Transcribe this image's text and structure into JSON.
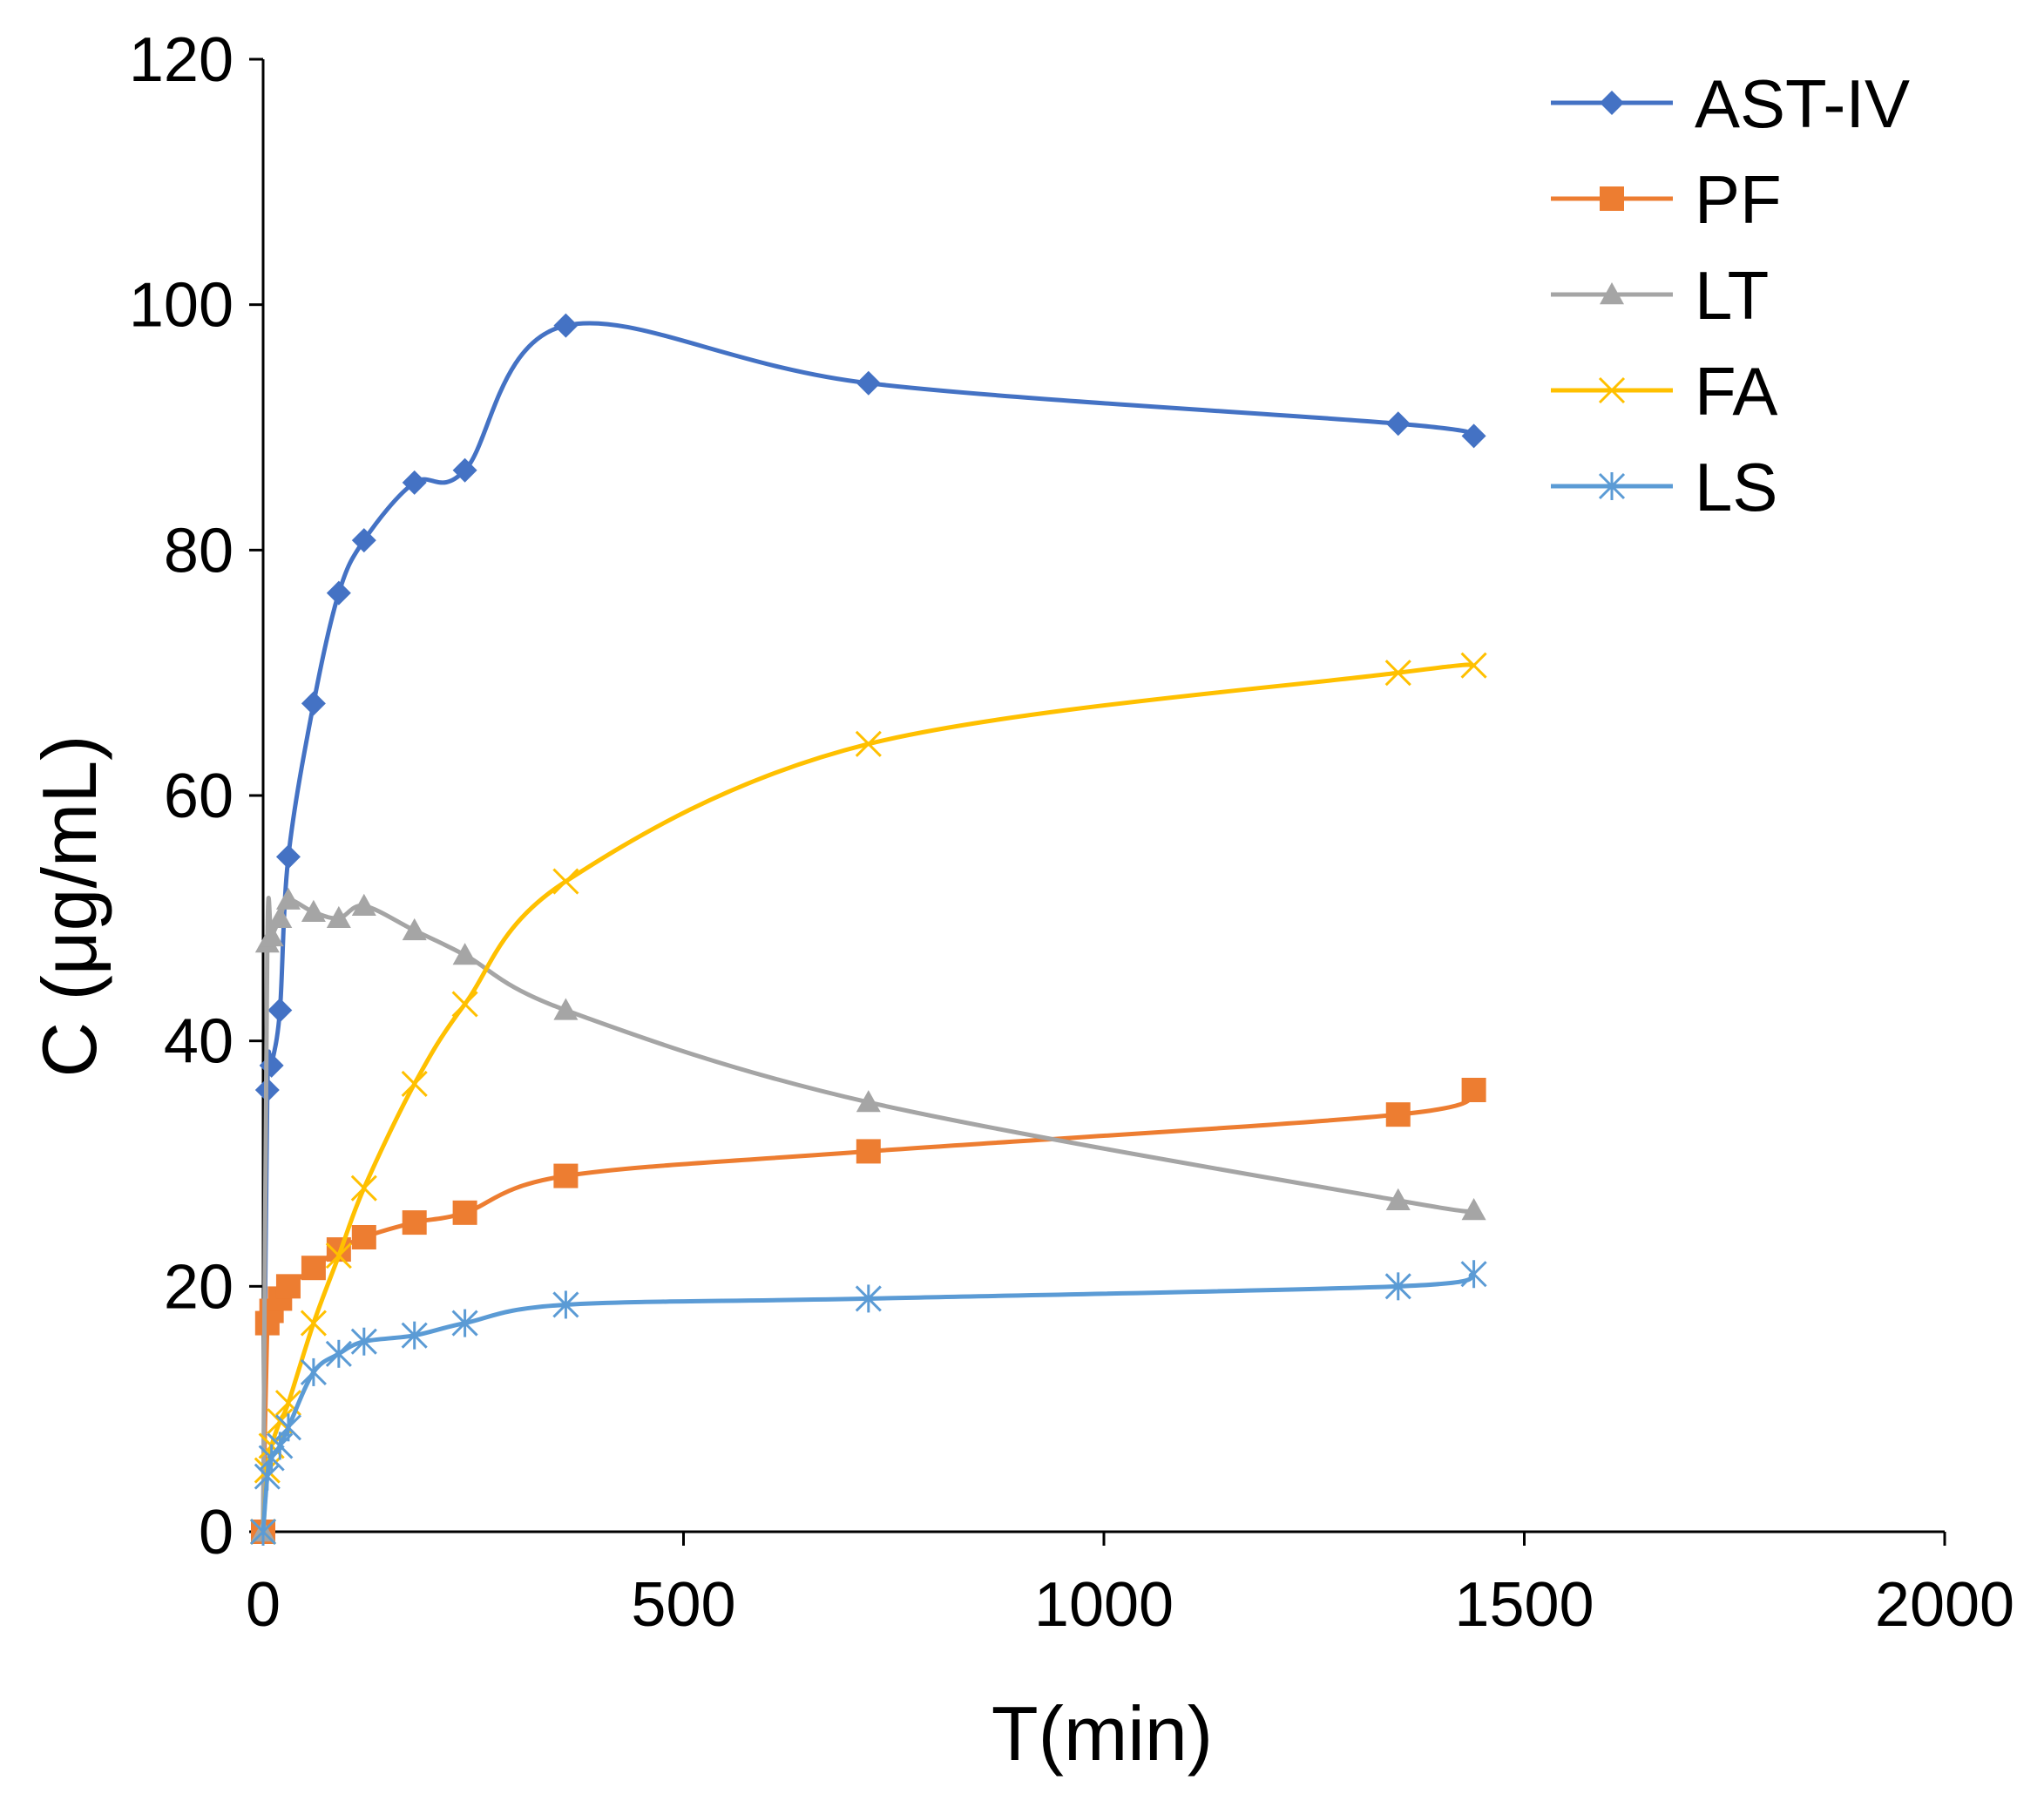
{
  "chart_data": {
    "type": "line",
    "title": "",
    "xlabel": "T(min)",
    "ylabel": "C (μg/mL)",
    "xlim": [
      0,
      2000
    ],
    "ylim": [
      0,
      120
    ],
    "x_ticks": [
      0,
      500,
      1000,
      1500,
      2000
    ],
    "y_ticks": [
      0,
      20,
      40,
      60,
      80,
      100,
      120
    ],
    "x_tick_labels": [
      "0",
      "500",
      "1000",
      "1500",
      "2000"
    ],
    "y_tick_labels": [
      "0",
      "20",
      "40",
      "60",
      "80",
      "100",
      "120"
    ],
    "grid": false,
    "legend_position": "top-right",
    "series": [
      {
        "name": "AST-IV",
        "color": "#4472C4",
        "marker": "diamond",
        "x": [
          0,
          5,
          10,
          20,
          30,
          60,
          90,
          120,
          180,
          240,
          360,
          720,
          1350,
          1440
        ],
        "y": [
          0,
          36,
          38,
          42.5,
          55,
          67.5,
          76.5,
          80.8,
          85.5,
          86.5,
          98.3,
          93.6,
          90.3,
          89.3
        ]
      },
      {
        "name": "PF",
        "color": "#ED7D31",
        "marker": "square",
        "x": [
          0,
          5,
          10,
          20,
          30,
          60,
          90,
          120,
          180,
          240,
          360,
          720,
          1350,
          1440
        ],
        "y": [
          0,
          17,
          18,
          19,
          20,
          21.5,
          23,
          24,
          25.2,
          26,
          29,
          31,
          34,
          36
        ]
      },
      {
        "name": "LT",
        "color": "#A5A5A5",
        "marker": "triangle",
        "x": [
          0,
          5,
          10,
          20,
          30,
          60,
          90,
          120,
          180,
          240,
          360,
          720,
          1350,
          1440
        ],
        "y": [
          0,
          48,
          48.5,
          50,
          51.5,
          50.5,
          50,
          51,
          49,
          47,
          42.5,
          35,
          27,
          26.2
        ]
      },
      {
        "name": "FA",
        "color": "#FFC000",
        "marker": "x",
        "x": [
          0,
          5,
          10,
          20,
          30,
          60,
          90,
          120,
          180,
          240,
          360,
          720,
          1350,
          1440
        ],
        "y": [
          0,
          5,
          7,
          9,
          10.5,
          17,
          22.5,
          28,
          36.5,
          43,
          53,
          64.2,
          70,
          70.6
        ]
      },
      {
        "name": "LS",
        "color": "#5B9BD5",
        "marker": "asterisk",
        "x": [
          0,
          5,
          10,
          20,
          30,
          60,
          90,
          120,
          180,
          240,
          360,
          720,
          1350,
          1440
        ],
        "y": [
          0,
          4.5,
          6,
          7,
          8.5,
          13,
          14.5,
          15.5,
          16,
          17,
          18.5,
          19,
          20,
          21
        ]
      }
    ]
  }
}
